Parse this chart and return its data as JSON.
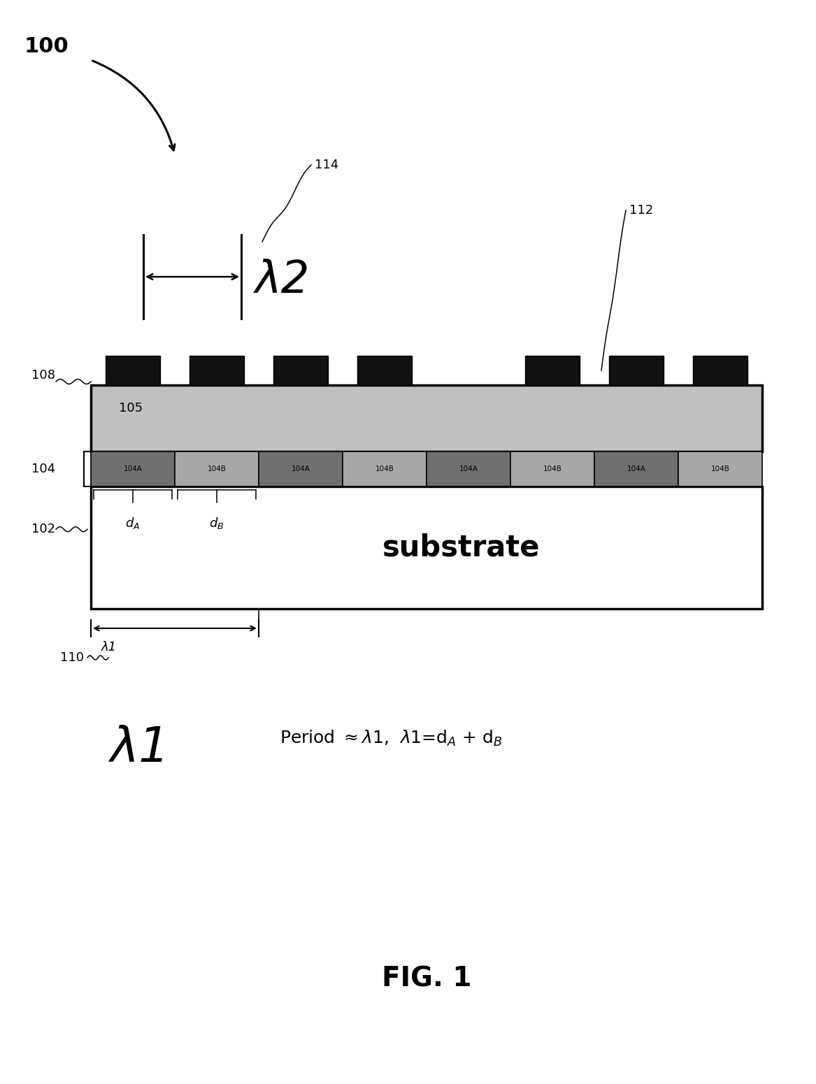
{
  "bg_color": "#ffffff",
  "substrate_color": "#ffffff",
  "epitaxial_layer_color": "#c0c0c0",
  "segment_A_color": "#707070",
  "segment_B_color": "#a8a8a8",
  "black_blocks_color": "#111111",
  "fig_caption": "FIG. 1",
  "lambda1_large": "λ1",
  "lambda2_label": "λ2",
  "lambda1_label": "λ1",
  "label_100": "100",
  "label_114": "114",
  "label_112": "112",
  "label_108": "108",
  "label_105": "105",
  "label_104": "104",
  "label_102": "102",
  "label_110": "110"
}
